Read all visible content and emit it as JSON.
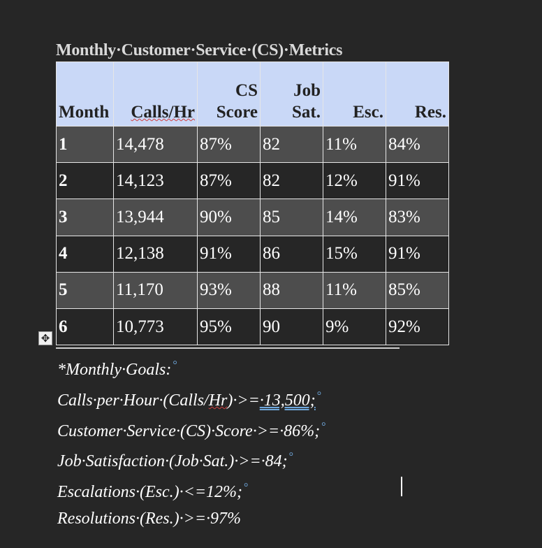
{
  "document": {
    "title": "Monthly·Customer·Service·(CS)·Metrics",
    "table": {
      "headers": [
        {
          "line1": "",
          "line2": "Month"
        },
        {
          "line1": "",
          "line2": "Calls/Hr"
        },
        {
          "line1": "CS",
          "line2": "Score"
        },
        {
          "line1": "Job",
          "line2": "Sat."
        },
        {
          "line1": "",
          "line2": "Esc."
        },
        {
          "line1": "",
          "line2": "Res."
        }
      ],
      "rows": [
        [
          "1",
          "14,478",
          "87%",
          "82",
          "11%",
          "84%"
        ],
        [
          "2",
          "14,123",
          "87%",
          "82",
          "12%",
          "91%"
        ],
        [
          "3",
          "13,944",
          "90%",
          "85",
          "14%",
          "83%"
        ],
        [
          "4",
          "12,138",
          "91%",
          "86",
          "15%",
          "91%"
        ],
        [
          "5",
          "11,170",
          "93%",
          "88",
          "11%",
          "85%"
        ],
        [
          "6",
          "10,773",
          "95%",
          "90",
          "9%",
          "92%"
        ]
      ]
    },
    "notes": {
      "heading": "*Monthly·Goals:",
      "calls_prefix": "Calls·per·Hour·(Calls/",
      "calls_hr": "Hr",
      "calls_mid": ")·>=",
      "calls_value": "·13,500;",
      "cs": "Customer·Service·(CS)·Score·>=·86%;",
      "job": "Job·Satisfaction·(Job·Sat.)·>=·84;",
      "esc": "Escalations·(Esc.)·<=12%;",
      "res": "Resolutions·(Res.)·>=·97%"
    },
    "move_handle_icon": "move-arrows-icon",
    "colors": {
      "header_bg": "#c9d8f7",
      "light_row": "#4d4d4d",
      "dark_row": "#262626",
      "marks": "#6fa8dc"
    }
  }
}
